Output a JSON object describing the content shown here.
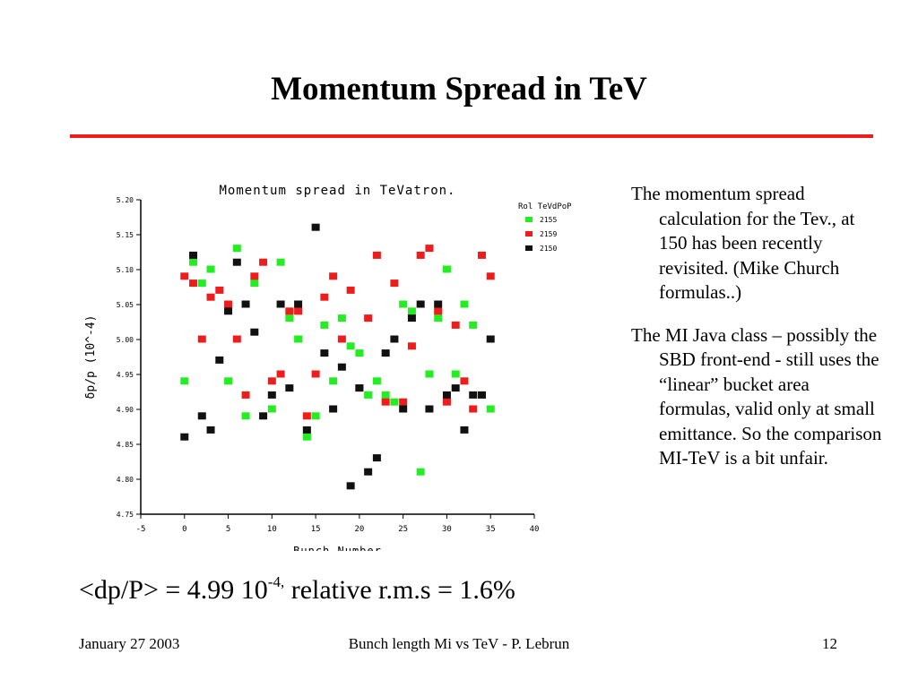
{
  "slide": {
    "title": "Momentum Spread in TeV",
    "bullets": [
      "The momentum spread calculation for the Tev., at 150 has been recently revisited. (Mike Church formulas..)",
      "The MI Java class – possibly the SBD front-end -  still uses the “linear” bucket area formulas, valid only at small emittance. So the comparison MI-TeV  is a bit unfair."
    ],
    "summary": {
      "prefix": "<dp/P> = 4.99 10",
      "exponent": "-4,",
      "suffix": " relative r.m.s = 1.6%"
    },
    "footer": {
      "date": "January  27  2003",
      "center": "Bunch length Mi vs TeV - P. Lebrun",
      "page": "12"
    }
  },
  "chart_data": {
    "type": "scatter",
    "title": "Momentum spread in TeVatron.",
    "xlabel": "Bunch Number",
    "ylabel": "δp/p (10^-4)",
    "xlim": [
      -5,
      40
    ],
    "ylim": [
      4.75,
      5.2
    ],
    "xticks": [
      "-5",
      "0",
      "5",
      "10",
      "15",
      "20",
      "25",
      "30",
      "35",
      "40"
    ],
    "yticks": [
      "4.75",
      "4.80",
      "4.85",
      "4.90",
      "4.95",
      "5.00",
      "5.05",
      "5.10",
      "5.15",
      "5.20"
    ],
    "legend_title": "Rol TeVdPoP",
    "legend_position": "top-right",
    "grid": false,
    "series": [
      {
        "name": "2155",
        "color": "#22ee22",
        "points": [
          [
            0,
            4.94
          ],
          [
            1,
            5.11
          ],
          [
            2,
            5.08
          ],
          [
            3,
            5.1
          ],
          [
            5,
            4.94
          ],
          [
            6,
            5.13
          ],
          [
            7,
            4.89
          ],
          [
            8,
            5.08
          ],
          [
            10,
            4.9
          ],
          [
            11,
            5.11
          ],
          [
            12,
            5.03
          ],
          [
            13,
            5.0
          ],
          [
            14,
            4.86
          ],
          [
            15,
            4.89
          ],
          [
            16,
            5.02
          ],
          [
            17,
            4.94
          ],
          [
            18,
            5.03
          ],
          [
            19,
            4.99
          ],
          [
            20,
            4.98
          ],
          [
            21,
            4.92
          ],
          [
            22,
            4.94
          ],
          [
            23,
            4.92
          ],
          [
            24,
            4.91
          ],
          [
            25,
            5.05
          ],
          [
            26,
            5.04
          ],
          [
            27,
            4.81
          ],
          [
            28,
            4.95
          ],
          [
            29,
            5.03
          ],
          [
            30,
            5.1
          ],
          [
            31,
            4.95
          ],
          [
            32,
            5.05
          ],
          [
            33,
            5.02
          ],
          [
            34,
            4.92
          ],
          [
            35,
            4.9
          ]
        ]
      },
      {
        "name": "2159",
        "color": "#ee1c1c",
        "points": [
          [
            0,
            5.09
          ],
          [
            1,
            5.08
          ],
          [
            2,
            5.0
          ],
          [
            3,
            5.06
          ],
          [
            4,
            5.07
          ],
          [
            5,
            5.05
          ],
          [
            6,
            5.0
          ],
          [
            7,
            4.92
          ],
          [
            8,
            5.09
          ],
          [
            9,
            5.11
          ],
          [
            10,
            4.94
          ],
          [
            11,
            4.95
          ],
          [
            12,
            5.04
          ],
          [
            13,
            5.04
          ],
          [
            14,
            4.89
          ],
          [
            15,
            4.95
          ],
          [
            16,
            5.06
          ],
          [
            17,
            5.09
          ],
          [
            18,
            5.0
          ],
          [
            19,
            5.07
          ],
          [
            20,
            4.93
          ],
          [
            21,
            5.03
          ],
          [
            22,
            5.12
          ],
          [
            23,
            4.91
          ],
          [
            24,
            5.08
          ],
          [
            25,
            4.91
          ],
          [
            26,
            4.99
          ],
          [
            27,
            5.12
          ],
          [
            28,
            5.13
          ],
          [
            29,
            5.04
          ],
          [
            30,
            4.91
          ],
          [
            31,
            5.02
          ],
          [
            32,
            4.94
          ],
          [
            33,
            4.9
          ],
          [
            34,
            5.12
          ],
          [
            35,
            5.09
          ]
        ]
      },
      {
        "name": "2150",
        "color": "#111111",
        "points": [
          [
            0,
            4.86
          ],
          [
            1,
            5.12
          ],
          [
            2,
            4.89
          ],
          [
            3,
            4.87
          ],
          [
            4,
            4.97
          ],
          [
            5,
            5.04
          ],
          [
            6,
            5.11
          ],
          [
            7,
            5.05
          ],
          [
            8,
            5.01
          ],
          [
            9,
            4.89
          ],
          [
            10,
            4.92
          ],
          [
            11,
            5.05
          ],
          [
            12,
            4.93
          ],
          [
            13,
            5.05
          ],
          [
            14,
            4.87
          ],
          [
            15,
            5.16
          ],
          [
            16,
            4.98
          ],
          [
            17,
            4.9
          ],
          [
            18,
            4.96
          ],
          [
            19,
            4.79
          ],
          [
            20,
            4.93
          ],
          [
            21,
            4.81
          ],
          [
            22,
            4.83
          ],
          [
            23,
            4.98
          ],
          [
            24,
            5.0
          ],
          [
            25,
            4.9
          ],
          [
            26,
            5.03
          ],
          [
            27,
            5.05
          ],
          [
            28,
            4.9
          ],
          [
            29,
            5.05
          ],
          [
            30,
            4.92
          ],
          [
            31,
            4.93
          ],
          [
            32,
            4.87
          ],
          [
            33,
            4.92
          ],
          [
            34,
            4.92
          ],
          [
            35,
            5.0
          ]
        ]
      }
    ]
  }
}
